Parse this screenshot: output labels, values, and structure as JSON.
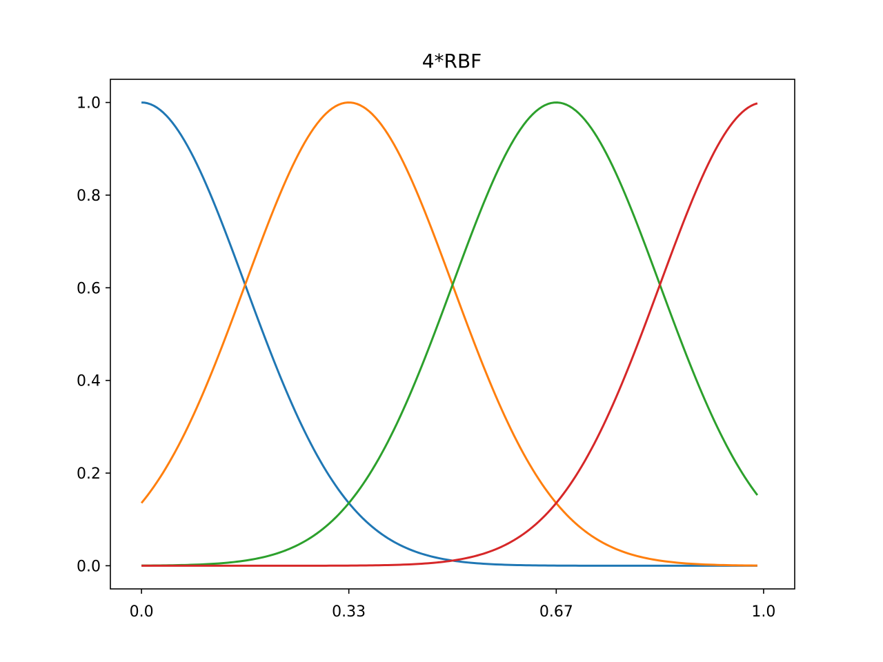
{
  "chart_data": {
    "type": "line",
    "title": "4*RBF",
    "xlabel": "",
    "ylabel": "",
    "xlim": [
      -0.05,
      1.05
    ],
    "ylim": [
      -0.05,
      1.05
    ],
    "grid": false,
    "xticks": [
      {
        "value": 0.0,
        "label": "0.0"
      },
      {
        "value": 0.3333,
        "label": "0.33"
      },
      {
        "value": 0.6667,
        "label": "0.67"
      },
      {
        "value": 1.0,
        "label": "1.0"
      }
    ],
    "yticks": [
      {
        "value": 0.0,
        "label": "0.0"
      },
      {
        "value": 0.2,
        "label": "0.2"
      },
      {
        "value": 0.4,
        "label": "0.4"
      },
      {
        "value": 0.6,
        "label": "0.6"
      },
      {
        "value": 0.8,
        "label": "0.8"
      },
      {
        "value": 1.0,
        "label": "1.0"
      }
    ],
    "x_end": 0.99,
    "series": [
      {
        "center": 0.0,
        "color": "#1f77b4"
      },
      {
        "center": 0.3333,
        "color": "#ff7f0e"
      },
      {
        "center": 0.6667,
        "color": "#2ca02c"
      },
      {
        "center": 1.0,
        "color": "#d62728"
      }
    ],
    "rbf": {
      "count": 4,
      "gamma": 18
    }
  }
}
